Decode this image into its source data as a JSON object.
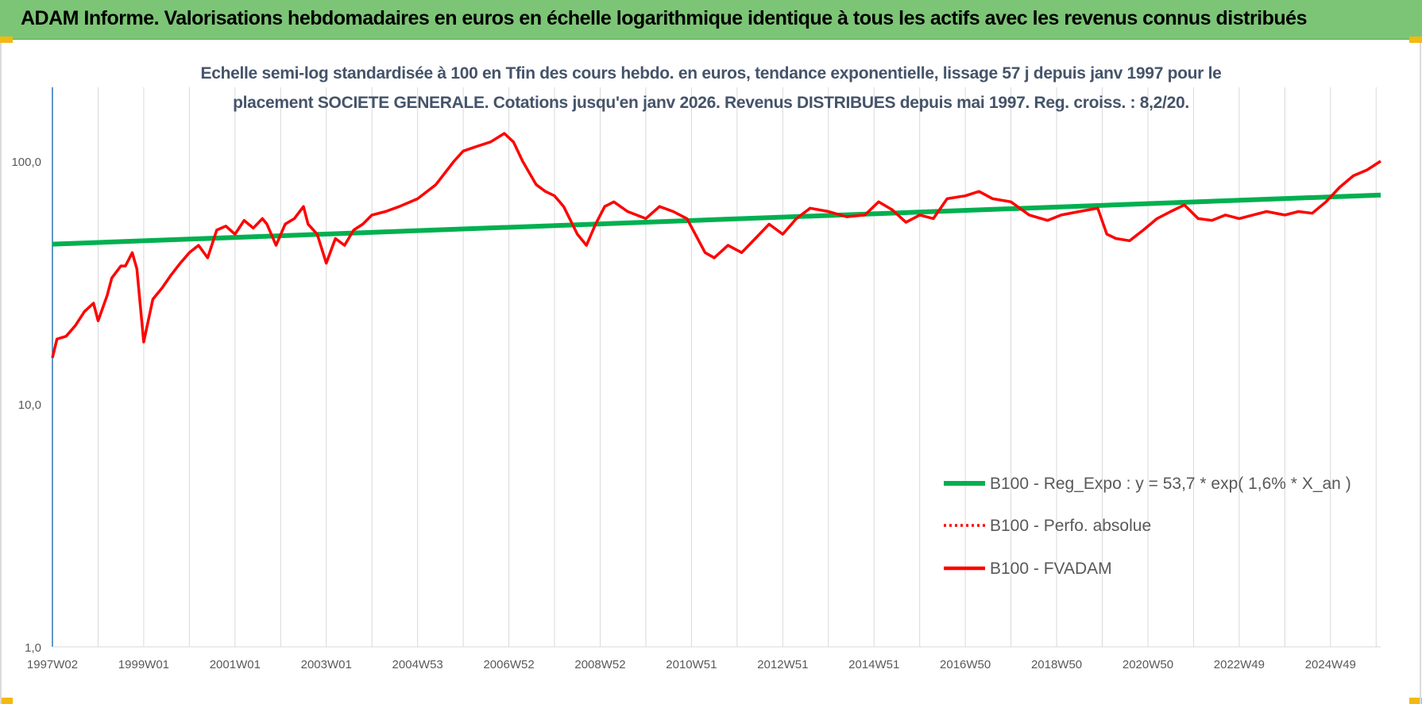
{
  "banner": {
    "title": "ADAM Informe. Valorisations hebdomadaires en euros en échelle logarithmique identique à tous les actifs avec les revenus connus distribués"
  },
  "colors": {
    "banner_bg": "#7cc576",
    "corner_accent": "#f2b90f",
    "regression": "#00b050",
    "fvadam": "#ff0000",
    "title_text": "#44546a",
    "grid": "#d9d9d9"
  },
  "chart_data": {
    "type": "line",
    "title_line1": "Echelle semi-log standardisée à 100 en Tfin des cours hebdo. en euros, tendance exponentielle, lissage 57 j depuis janv 1997 pour le",
    "title_line2": "placement SOCIETE GENERALE. Cotations jusqu'en janv 2026. Revenus DISTRIBUES depuis mai 1997. Reg. croiss. : 8,2/20.",
    "yscale": "log",
    "ylim": [
      1,
      200
    ],
    "ytick_labels": [
      "1,0",
      "10,0",
      "100,0"
    ],
    "ytick_values": [
      1,
      10,
      100
    ],
    "xlim": [
      1997.0,
      2026.1
    ],
    "xtick_labels": [
      "1997W02",
      "1999W01",
      "2001W01",
      "2003W01",
      "2004W53",
      "2006W52",
      "2008W52",
      "2010W51",
      "2012W51",
      "2014W51",
      "2016W50",
      "2018W50",
      "2020W50",
      "2022W49",
      "2024W49"
    ],
    "xtick_values": [
      1997.0,
      1999.0,
      2001.0,
      2003.0,
      2005.0,
      2007.0,
      2009.0,
      2011.0,
      2013.0,
      2015.0,
      2017.0,
      2019.0,
      2021.0,
      2023.0,
      2025.0
    ],
    "grid": "vertical",
    "legend_position": "bottom-right",
    "legend": [
      {
        "label": "B100 - Reg_Expo : y = 53,7 * exp( 1,6% *  X_an )",
        "style": "solid-green"
      },
      {
        "label": "B100 - Perfo. absolue",
        "style": "dotted-red"
      },
      {
        "label": "B100 - FVADAM",
        "style": "solid-red"
      }
    ],
    "series": [
      {
        "name": "B100 - Reg_Expo : y = 53,7 * exp( 1,6% *  X_an )",
        "x": [
          1997.0,
          2026.1
        ],
        "y": [
          45.5,
          72.5
        ]
      },
      {
        "name": "B100 - FVADAM",
        "x": [
          1997.0,
          1997.1,
          1997.3,
          1997.5,
          1997.7,
          1997.9,
          1998.0,
          1998.2,
          1998.3,
          1998.5,
          1998.6,
          1998.75,
          1998.85,
          1999.0,
          1999.2,
          1999.4,
          1999.6,
          1999.8,
          2000.0,
          2000.2,
          2000.4,
          2000.6,
          2000.8,
          2001.0,
          2001.2,
          2001.4,
          2001.6,
          2001.7,
          2001.9,
          2002.1,
          2002.3,
          2002.5,
          2002.6,
          2002.8,
          2003.0,
          2003.2,
          2003.4,
          2003.6,
          2003.8,
          2004.0,
          2004.3,
          2004.6,
          2005.0,
          2005.4,
          2005.8,
          2006.0,
          2006.3,
          2006.6,
          2006.9,
          2007.1,
          2007.3,
          2007.6,
          2007.8,
          2008.0,
          2008.2,
          2008.5,
          2008.7,
          2008.9,
          2009.1,
          2009.3,
          2009.6,
          2010.0,
          2010.3,
          2010.6,
          2010.9,
          2011.3,
          2011.5,
          2011.8,
          2012.1,
          2012.4,
          2012.7,
          2013.0,
          2013.3,
          2013.6,
          2014.0,
          2014.4,
          2014.8,
          2015.1,
          2015.4,
          2015.7,
          2016.0,
          2016.3,
          2016.6,
          2017.0,
          2017.3,
          2017.6,
          2018.0,
          2018.4,
          2018.8,
          2019.1,
          2019.5,
          2019.9,
          2020.1,
          2020.3,
          2020.6,
          2020.9,
          2021.2,
          2021.5,
          2021.8,
          2022.1,
          2022.4,
          2022.7,
          2023.0,
          2023.3,
          2023.6,
          2024.0,
          2024.3,
          2024.6,
          2024.9,
          2025.2,
          2025.5,
          2025.8,
          2026.1
        ],
        "y": [
          15.5,
          18.5,
          19.0,
          21.0,
          24.0,
          26.0,
          22.0,
          28.0,
          33.0,
          37.0,
          37.0,
          42.0,
          36.0,
          18.0,
          27.0,
          30.0,
          34.0,
          38.0,
          42.0,
          45.0,
          40.0,
          52.0,
          54.0,
          50.0,
          57.0,
          53.0,
          58.0,
          55.0,
          45.0,
          55.0,
          58.0,
          65.0,
          55.0,
          50.0,
          38.0,
          48.0,
          45.0,
          52.0,
          55.0,
          60.0,
          62.0,
          65.0,
          70.0,
          80.0,
          100.0,
          110.0,
          115.0,
          120.0,
          130.0,
          120.0,
          100.0,
          80.0,
          75.0,
          72.0,
          65.0,
          50.0,
          45.0,
          55.0,
          65.0,
          68.0,
          62.0,
          58.0,
          65.0,
          62.0,
          58.0,
          42.0,
          40.0,
          45.0,
          42.0,
          48.0,
          55.0,
          50.0,
          58.0,
          64.0,
          62.0,
          59.0,
          60.0,
          68.0,
          63.0,
          56.0,
          60.0,
          58.0,
          70.0,
          72.0,
          75.0,
          70.0,
          68.0,
          60.0,
          57.0,
          60.0,
          62.0,
          64.0,
          50.0,
          48.0,
          47.0,
          52.0,
          58.0,
          62.0,
          66.0,
          58.0,
          57.0,
          60.0,
          58.0,
          60.0,
          62.0,
          60.0,
          62.0,
          61.0,
          68.0,
          78.0,
          87.0,
          92.0,
          100.0
        ]
      }
    ]
  }
}
